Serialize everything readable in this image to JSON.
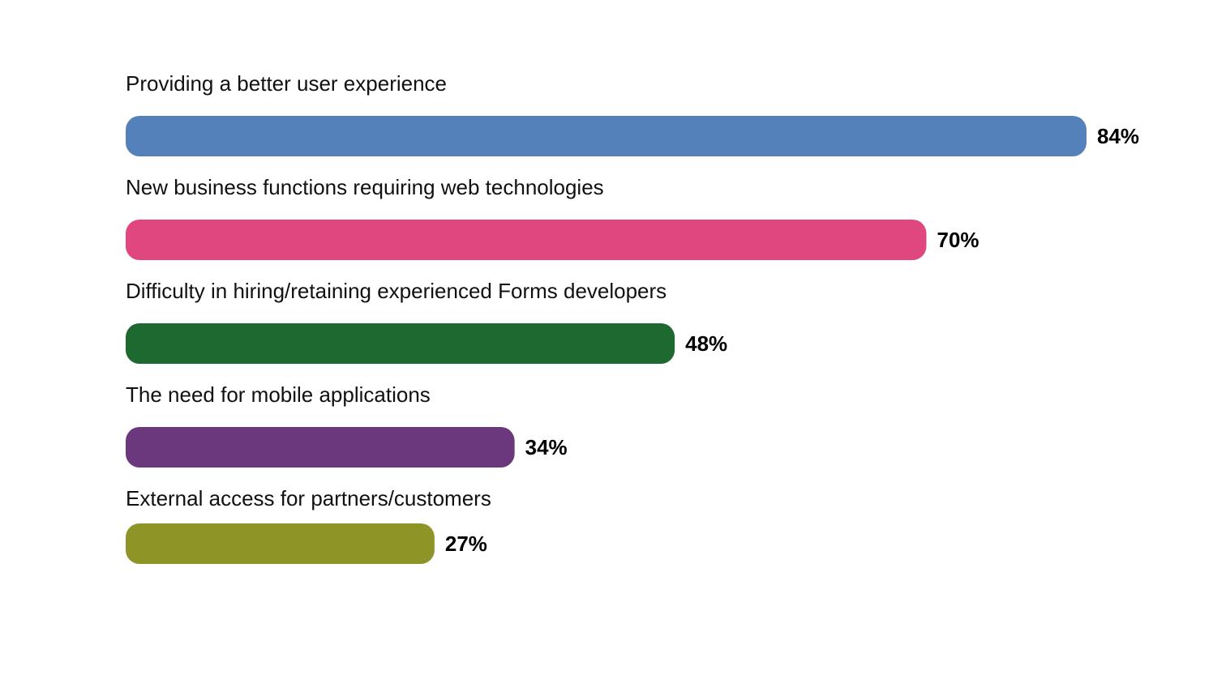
{
  "chart_data": {
    "type": "bar",
    "orientation": "horizontal",
    "title": "",
    "xlabel": "",
    "ylabel": "",
    "xlim": [
      0,
      100
    ],
    "grid": false,
    "value_suffix": "%",
    "categories": [
      "Providing a better user experience",
      "New business functions requiring web technologies",
      "Difficulty in hiring/retaining experienced Forms developers",
      "The need for mobile applications",
      "External access for partners/customers"
    ],
    "values": [
      84,
      70,
      48,
      34,
      27
    ],
    "value_labels": [
      "84%",
      "70%",
      "48%",
      "34%",
      "27%"
    ],
    "colors": [
      "#5581bb",
      "#e0477f",
      "#1d6930",
      "#6b377d",
      "#8e9426"
    ]
  }
}
